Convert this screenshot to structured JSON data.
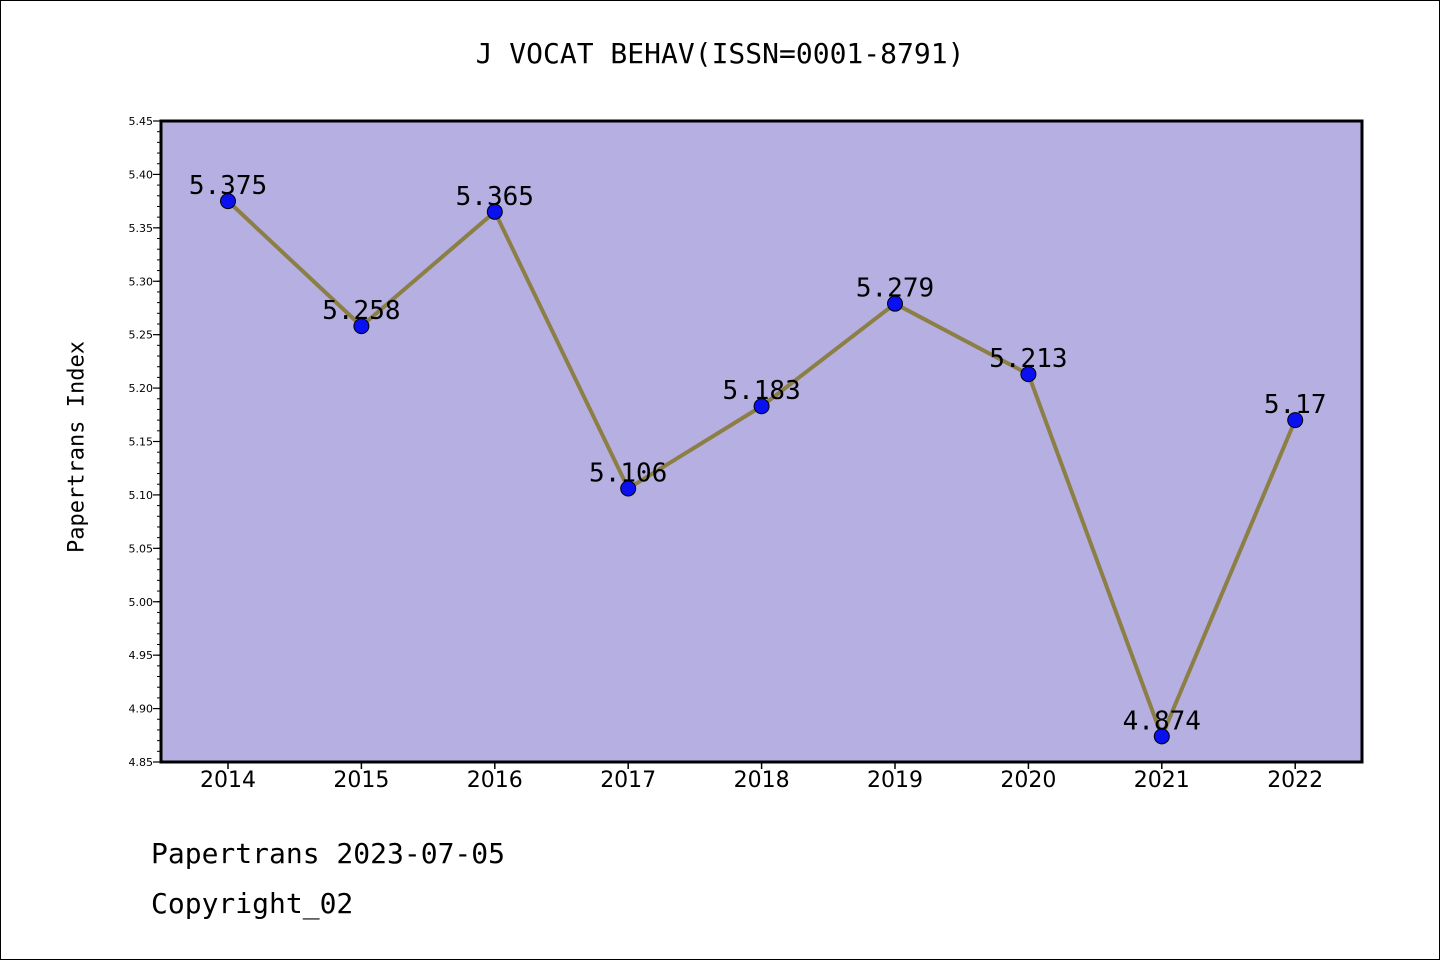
{
  "chart_data": {
    "type": "line",
    "title": "J VOCAT BEHAV(ISSN=0001-8791)",
    "ylabel": "Papertrans Index",
    "xlabel": "",
    "categories": [
      "2014",
      "2015",
      "2016",
      "2017",
      "2018",
      "2019",
      "2020",
      "2021",
      "2022"
    ],
    "values": [
      5.375,
      5.258,
      5.365,
      5.106,
      5.183,
      5.279,
      5.213,
      4.874,
      5.17
    ],
    "data_labels": [
      "5.375",
      "5.258",
      "5.365",
      "5.106",
      "5.183",
      "5.279",
      "5.213",
      "4.874",
      "5.17"
    ],
    "ylim": [
      4.85,
      5.45
    ],
    "yticks": [
      "4.85",
      "4.90",
      "4.95",
      "5.00",
      "5.05",
      "5.10",
      "5.15",
      "5.20",
      "5.25",
      "5.30",
      "5.35",
      "5.40",
      "5.45"
    ],
    "grid": false,
    "legend": "none",
    "colors": {
      "plot_background": "#b5afe2",
      "line": "#8c7f45",
      "marker": "#0a10f0"
    }
  },
  "footer": {
    "line1": "Papertrans 2023-07-05",
    "line2": "Copyright_02"
  }
}
